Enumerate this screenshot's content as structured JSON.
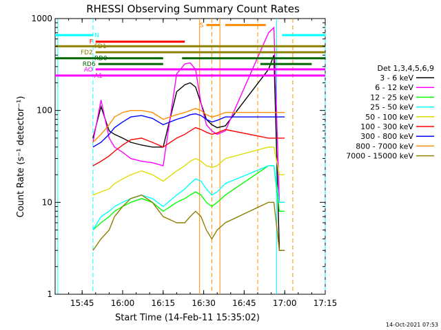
{
  "chart_data": {
    "type": "line",
    "title": "RHESSI Observing Summary Count Rates",
    "xlabel": "Start Time (14-Feb-11 15:35:02)",
    "ylabel": "Count Rate (s⁻¹ detector⁻¹)",
    "y_scale": "log",
    "ylim": [
      1,
      1000
    ],
    "x_unit": "minutes from 15:35",
    "xlim": [
      0,
      100
    ],
    "x_ticks": [
      {
        "v": 10,
        "label": "15:45"
      },
      {
        "v": 25,
        "label": "16:00"
      },
      {
        "v": 40,
        "label": "16:15"
      },
      {
        "v": 55,
        "label": "16:30"
      },
      {
        "v": 70,
        "label": "16:45"
      },
      {
        "v": 85,
        "label": "17:00"
      },
      {
        "v": 100,
        "label": "17:15"
      }
    ],
    "y_ticks": [
      {
        "v": 1,
        "label": "1"
      },
      {
        "v": 10,
        "label": "10"
      },
      {
        "v": 100,
        "label": "100"
      },
      {
        "v": 1000,
        "label": "1000"
      }
    ],
    "legend": {
      "title": "Det 1,3,4,5,6,9",
      "placement": "right"
    },
    "series": [
      {
        "name": "3 - 6 keV",
        "color": "#000000",
        "x": [
          14,
          17,
          20,
          22,
          25,
          28,
          32,
          36,
          40,
          45,
          48,
          50,
          52,
          54,
          56,
          58,
          60,
          63,
          79,
          81,
          83,
          85
        ],
        "y": [
          50,
          110,
          60,
          55,
          50,
          45,
          42,
          40,
          40,
          160,
          190,
          200,
          180,
          120,
          80,
          70,
          65,
          68,
          280,
          400,
          3,
          3
        ]
      },
      {
        "name": "6 - 12 keV",
        "color": "#ff00ff",
        "x": [
          14,
          17,
          20,
          22,
          25,
          28,
          32,
          36,
          40,
          45,
          48,
          50,
          52,
          54,
          56,
          58,
          60,
          63,
          79,
          81,
          83,
          85
        ],
        "y": [
          45,
          130,
          50,
          40,
          35,
          30,
          28,
          27,
          25,
          250,
          320,
          330,
          280,
          120,
          70,
          60,
          55,
          60,
          700,
          800,
          10,
          10
        ]
      },
      {
        "name": "12 - 25 keV",
        "color": "#00ff00",
        "x": [
          14,
          17,
          20,
          22,
          25,
          28,
          32,
          36,
          40,
          45,
          48,
          50,
          52,
          54,
          56,
          58,
          60,
          63,
          79,
          81,
          83,
          85
        ],
        "y": [
          5,
          6,
          7,
          8,
          9,
          10,
          11,
          10,
          8,
          10,
          11,
          12,
          13,
          12,
          10,
          9,
          10,
          12,
          25,
          25,
          8,
          8
        ]
      },
      {
        "name": "25 - 50 keV",
        "color": "#00ffff",
        "x": [
          14,
          17,
          20,
          22,
          25,
          28,
          32,
          36,
          40,
          45,
          48,
          50,
          52,
          54,
          56,
          58,
          60,
          63,
          79,
          81,
          83,
          85
        ],
        "y": [
          5,
          7,
          8,
          9,
          10,
          11,
          12,
          11,
          9,
          12,
          14,
          16,
          18,
          17,
          14,
          12,
          13,
          16,
          25,
          25,
          10,
          10
        ]
      },
      {
        "name": "50 - 100 keV",
        "color": "#dddd00",
        "x": [
          14,
          17,
          20,
          22,
          25,
          28,
          32,
          36,
          40,
          45,
          48,
          50,
          52,
          54,
          56,
          58,
          60,
          63,
          79,
          81,
          83,
          85
        ],
        "y": [
          12,
          13,
          14,
          16,
          18,
          20,
          22,
          20,
          17,
          22,
          25,
          28,
          30,
          28,
          25,
          24,
          25,
          30,
          40,
          40,
          20,
          20
        ]
      },
      {
        "name": "100 - 300 keV",
        "color": "#ff0000",
        "x": [
          14,
          17,
          20,
          22,
          25,
          28,
          32,
          36,
          40,
          45,
          48,
          50,
          52,
          54,
          56,
          58,
          60,
          63,
          79,
          81,
          83,
          85
        ],
        "y": [
          25,
          28,
          32,
          36,
          42,
          48,
          50,
          45,
          40,
          50,
          55,
          60,
          65,
          62,
          58,
          55,
          57,
          62,
          50,
          50,
          50,
          50
        ]
      },
      {
        "name": "300 - 800 keV",
        "color": "#0000ff",
        "x": [
          14,
          17,
          20,
          22,
          25,
          28,
          32,
          36,
          40,
          45,
          48,
          50,
          52,
          54,
          56,
          58,
          60,
          63,
          79,
          81,
          83,
          85
        ],
        "y": [
          40,
          45,
          55,
          65,
          75,
          85,
          88,
          82,
          70,
          80,
          85,
          90,
          92,
          88,
          80,
          75,
          78,
          85,
          85,
          85,
          85,
          85
        ]
      },
      {
        "name": "800 - 7000 keV",
        "color": "#ff8c00",
        "x": [
          14,
          17,
          20,
          22,
          25,
          28,
          32,
          36,
          40,
          45,
          48,
          50,
          52,
          54,
          56,
          58,
          60,
          63,
          79,
          81,
          83,
          85
        ],
        "y": [
          45,
          55,
          70,
          85,
          95,
          100,
          100,
          95,
          80,
          90,
          95,
          100,
          105,
          100,
          90,
          85,
          88,
          95,
          95,
          95,
          95,
          95
        ]
      },
      {
        "name": "7000 - 15000 keV",
        "color": "#8b8000",
        "x": [
          14,
          17,
          20,
          22,
          25,
          28,
          32,
          36,
          40,
          45,
          48,
          50,
          52,
          54,
          56,
          58,
          60,
          63,
          79,
          81,
          83,
          85
        ],
        "y": [
          3,
          4,
          5,
          7,
          9,
          11,
          12,
          10,
          7,
          6,
          6,
          7,
          8,
          7,
          5,
          4,
          5,
          6,
          10,
          10,
          3,
          3
        ]
      }
    ],
    "vertical_lines": [
      {
        "x": 1,
        "color": "#00ffff",
        "style": "solid"
      },
      {
        "x": 14,
        "color": "#00ffff",
        "style": "dashed"
      },
      {
        "x": 53.5,
        "color": "#ff8c00",
        "style": "solid"
      },
      {
        "x": 58,
        "color": "#ff8c00",
        "style": "dashed"
      },
      {
        "x": 61,
        "color": "#ff8c00",
        "style": "solid"
      },
      {
        "x": 75,
        "color": "#ff8c00",
        "style": "dashed"
      },
      {
        "x": 82,
        "color": "#00ffff",
        "style": "solid"
      },
      {
        "x": 88,
        "color": "#ff8c00",
        "style": "dashed"
      },
      {
        "x": 100,
        "color": "#00ffff",
        "style": "dashed"
      }
    ],
    "flags": [
      {
        "label": "N",
        "label_side": "right",
        "color": "#00ffff",
        "y": 660,
        "segments": [
          [
            0,
            14
          ],
          [
            84,
            100
          ]
        ]
      },
      {
        "label": "S",
        "label_side": "left",
        "color": "#ff8c00",
        "y": 850,
        "segments": [
          [
            56,
            61
          ],
          [
            63,
            78
          ]
        ]
      },
      {
        "label": "F",
        "label_side": "left",
        "color": "#ff0000",
        "y": 560,
        "segments": [
          [
            15,
            48
          ]
        ]
      },
      {
        "label": "FD1",
        "label_side": "right",
        "color": "#8b8000",
        "y": 500,
        "segments": [
          [
            0,
            100
          ]
        ]
      },
      {
        "label": "FD2",
        "label_side": "left",
        "color": "#8b8000",
        "y": 430,
        "segments": [
          [
            15,
            100
          ]
        ]
      },
      {
        "label": "RD0",
        "label_side": "right",
        "color": "#006400",
        "y": 370,
        "segments": [
          [
            0,
            40
          ],
          [
            47,
            100
          ]
        ]
      },
      {
        "label": "RD6",
        "label_side": "left",
        "color": "#006400",
        "y": 320,
        "segments": [
          [
            16,
            40
          ],
          [
            76,
            95
          ]
        ]
      },
      {
        "label": "AO",
        "label_side": "left",
        "color": "#ff00ff",
        "y": 280,
        "segments": [
          [
            15,
            100
          ]
        ]
      },
      {
        "label": "A1",
        "label_side": "right",
        "color": "#ff00ff",
        "y": 240,
        "segments": [
          [
            0,
            100
          ]
        ]
      }
    ],
    "stamp": "14-Oct-2021 07:53"
  }
}
